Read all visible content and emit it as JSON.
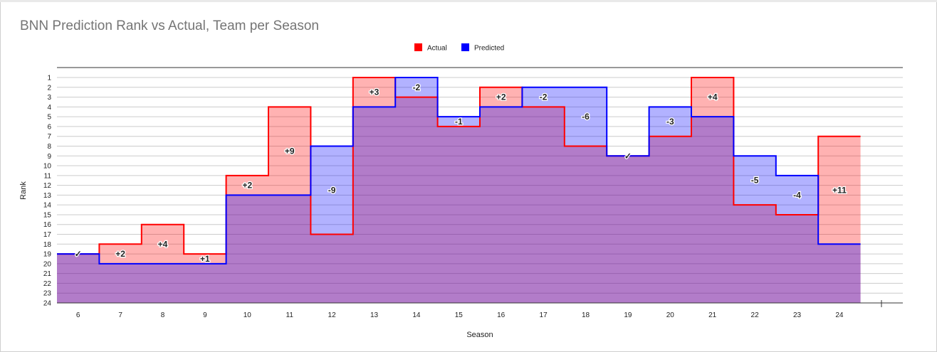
{
  "chart_data": {
    "type": "area",
    "title": "BNN Prediction Rank vs Actual, Team per Season",
    "xlabel": "Season",
    "ylabel": "Rank",
    "ylim": [
      1,
      24
    ],
    "y_reversed": true,
    "step": true,
    "grid": true,
    "legend_position": "top-center",
    "categories": [
      "6",
      "7",
      "8",
      "9",
      "10",
      "11",
      "12",
      "13",
      "14",
      "15",
      "16",
      "17",
      "18",
      "19",
      "20",
      "21",
      "22",
      "23",
      "24"
    ],
    "series": [
      {
        "name": "Actual",
        "color": "#ff0000",
        "values": [
          19,
          18,
          16,
          19,
          11,
          4,
          17,
          1,
          3,
          6,
          2,
          4,
          8,
          9,
          7,
          1,
          14,
          15,
          7
        ]
      },
      {
        "name": "Predicted",
        "color": "#0000ff",
        "values": [
          19,
          20,
          20,
          20,
          13,
          13,
          8,
          4,
          1,
          5,
          4,
          2,
          2,
          9,
          4,
          5,
          9,
          11,
          18
        ]
      }
    ],
    "diff_labels": [
      "✓",
      "+2",
      "+4",
      "+1",
      "+2",
      "+9",
      "-9",
      "+3",
      "-2",
      "-1",
      "+2",
      "-2",
      "-6",
      "✓",
      "-3",
      "+4",
      "-5",
      "-4",
      "+11"
    ],
    "yticks": [
      1,
      2,
      3,
      4,
      5,
      6,
      7,
      8,
      9,
      10,
      11,
      12,
      13,
      14,
      15,
      16,
      17,
      18,
      19,
      20,
      21,
      22,
      23,
      24
    ]
  }
}
